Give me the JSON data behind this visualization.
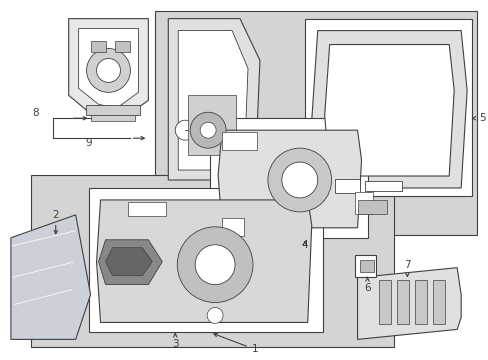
{
  "bg_color": "#ffffff",
  "shade": "#d4d4d4",
  "white": "#ffffff",
  "lc": "#404040",
  "lw": 0.8,
  "fs": 7.5,
  "figsize": [
    4.89,
    3.6
  ],
  "dpi": 100
}
